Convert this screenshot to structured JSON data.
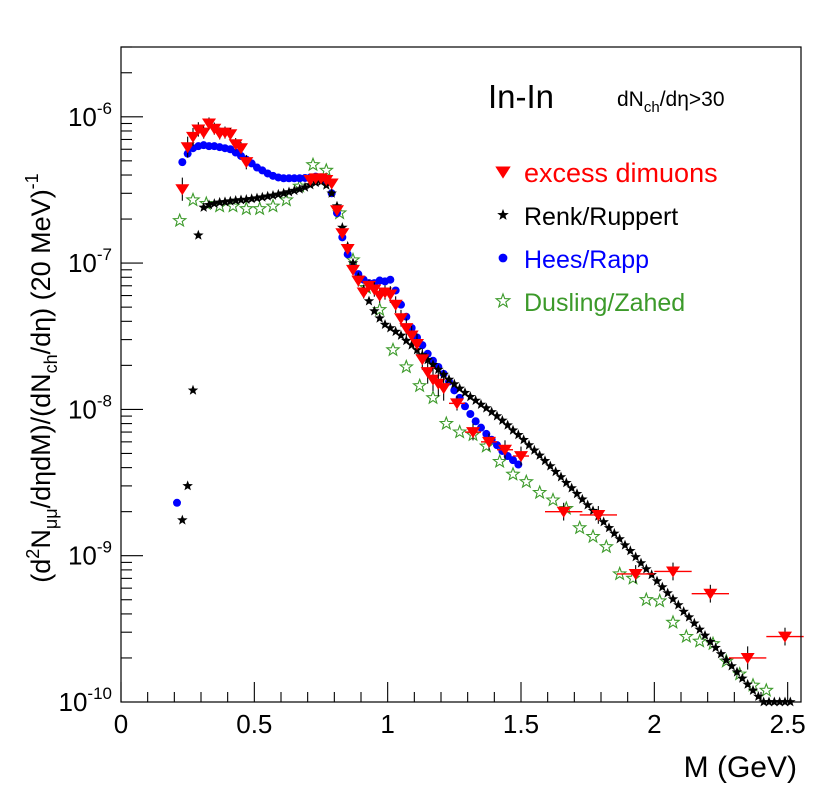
{
  "chart_data": {
    "type": "scatter",
    "xlabel": "M (GeV)",
    "ylabel": {
      "open": "(d",
      "sup2": "2",
      "n": "N",
      "mumu": "μμ",
      "mid": "/dηdM)/(dN",
      "ch": "ch",
      "close": "/dη)  (20 MeV)",
      "exp": "-1"
    },
    "annotation": {
      "system": "In-In",
      "cut_pre": "dN",
      "cut_sub": "ch",
      "cut_post": "/dη>30"
    },
    "xlim": [
      0,
      2.55
    ],
    "ylim": [
      1e-10,
      3e-06
    ],
    "yscale": "log",
    "x_ticks": [
      {
        "v": 0,
        "label": "0"
      },
      {
        "v": 0.5,
        "label": "0.5"
      },
      {
        "v": 1,
        "label": "1"
      },
      {
        "v": 1.5,
        "label": "1.5"
      },
      {
        "v": 2,
        "label": "2"
      },
      {
        "v": 2.5,
        "label": "2.5"
      }
    ],
    "y_ticks": [
      {
        "v": 1e-10,
        "base": "10",
        "exp": "-10"
      },
      {
        "v": 1e-09,
        "base": "10",
        "exp": "-9"
      },
      {
        "v": 1e-08,
        "base": "10",
        "exp": "-8"
      },
      {
        "v": 1e-07,
        "base": "10",
        "exp": "-7"
      },
      {
        "v": 1e-06,
        "base": "10",
        "exp": "-6"
      }
    ],
    "legend": {
      "placement": "top-right",
      "entries": [
        {
          "label": "excess dimuons",
          "color": "#ff0000",
          "marker": "triangle-down"
        },
        {
          "label": "Renk/Ruppert",
          "color": "#000000",
          "marker": "star-filled"
        },
        {
          "label": "Hees/Rapp",
          "color": "#0000ff",
          "marker": "circle"
        },
        {
          "label": "Dusling/Zahed",
          "color": "#3c9a2a",
          "marker": "star-open"
        }
      ]
    },
    "series": [
      {
        "name": "excess dimuons",
        "color": "#ff0000",
        "marker": "triangle-down",
        "x": [
          0.23,
          0.25,
          0.27,
          0.29,
          0.31,
          0.33,
          0.35,
          0.37,
          0.39,
          0.41,
          0.43,
          0.45,
          0.47,
          0.71,
          0.73,
          0.75,
          0.77,
          0.79,
          0.81,
          0.83,
          0.85,
          0.87,
          0.89,
          0.91,
          0.93,
          0.95,
          0.97,
          0.99,
          1.01,
          1.03,
          1.05,
          1.07,
          1.09,
          1.11,
          1.13,
          1.15,
          1.17,
          1.19,
          1.21,
          1.26,
          1.32,
          1.38,
          1.44,
          1.5,
          1.66,
          1.79,
          1.93,
          2.07,
          2.21,
          2.35,
          2.49
        ],
        "y": [
          3.2e-07,
          6.2e-07,
          7.3e-07,
          8.2e-07,
          7.8e-07,
          9e-07,
          8.3e-07,
          7.7e-07,
          7.8e-07,
          7.6e-07,
          6.5e-07,
          6.1e-07,
          4.9e-07,
          3.7e-07,
          3.8e-07,
          3.8e-07,
          3.7e-07,
          3.5e-07,
          2.3e-07,
          1.6e-07,
          1.25e-07,
          9e-08,
          7.6e-08,
          6.3e-08,
          7e-08,
          6.6e-08,
          6e-08,
          6.3e-08,
          6.1e-08,
          5.2e-08,
          4.2e-08,
          3.6e-08,
          3.2e-08,
          2.8e-08,
          2.2e-08,
          1.8e-08,
          1.6e-08,
          1.5e-08,
          1.4e-08,
          1.1e-08,
          7e-09,
          6e-09,
          5.3e-09,
          4.8e-09,
          2e-09,
          1.9e-09,
          7.5e-10,
          7.8e-10,
          5.5e-10,
          2e-10,
          2.8e-10
        ],
        "err": [
          0.2,
          0.18,
          0.15,
          0.12,
          0.1,
          0.1,
          0.1,
          0.1,
          0.1,
          0.1,
          0.1,
          0.1,
          0.12,
          0.08,
          0.08,
          0.08,
          0.08,
          0.08,
          0.08,
          0.08,
          0.08,
          0.08,
          0.1,
          0.1,
          0.1,
          0.12,
          0.12,
          0.12,
          0.14,
          0.14,
          0.14,
          0.16,
          0.16,
          0.18,
          0.18,
          0.2,
          0.2,
          0.22,
          0.22,
          0.12,
          0.14,
          0.14,
          0.16,
          0.16,
          0.15,
          0.15,
          0.15,
          0.15,
          0.15,
          0.2,
          0.15
        ],
        "xerr": [
          0,
          0,
          0,
          0,
          0,
          0,
          0,
          0,
          0,
          0,
          0,
          0,
          0,
          0,
          0,
          0,
          0,
          0,
          0,
          0,
          0,
          0,
          0,
          0,
          0,
          0,
          0,
          0,
          0,
          0,
          0,
          0,
          0,
          0,
          0,
          0,
          0,
          0,
          0,
          0.03,
          0.03,
          0.03,
          0.03,
          0.03,
          0.07,
          0.07,
          0.07,
          0.07,
          0.07,
          0.07,
          0.07
        ]
      },
      {
        "name": "Renk/Ruppert",
        "color": "#000000",
        "marker": "star-filled",
        "x": [
          0.23,
          0.25,
          0.27,
          0.29,
          0.31,
          0.33,
          0.35,
          0.37,
          0.39,
          0.41,
          0.43,
          0.45,
          0.47,
          0.49,
          0.51,
          0.53,
          0.55,
          0.57,
          0.59,
          0.61,
          0.63,
          0.65,
          0.67,
          0.69,
          0.71,
          0.73,
          0.75,
          0.77,
          0.79,
          0.81,
          0.83,
          0.85,
          0.87,
          0.89,
          0.91,
          0.93,
          0.95,
          0.97,
          0.99,
          1.01,
          1.03,
          1.05,
          1.07,
          1.09,
          1.11,
          1.13,
          1.15,
          1.17,
          1.19,
          1.21,
          1.23,
          1.25,
          1.27,
          1.29,
          1.31,
          1.33,
          1.35,
          1.37,
          1.39,
          1.41,
          1.43,
          1.45,
          1.47,
          1.49,
          1.51,
          1.53,
          1.55,
          1.57,
          1.59,
          1.61,
          1.63,
          1.65,
          1.67,
          1.69,
          1.71,
          1.73,
          1.75,
          1.77,
          1.79,
          1.81,
          1.83,
          1.85,
          1.87,
          1.89,
          1.91,
          1.93,
          1.95,
          1.97,
          1.99,
          2.01,
          2.03,
          2.05,
          2.07,
          2.09,
          2.11,
          2.13,
          2.15,
          2.17,
          2.19,
          2.21,
          2.23,
          2.25,
          2.27,
          2.29,
          2.31,
          2.33,
          2.35,
          2.37,
          2.39,
          2.41,
          2.43,
          2.45,
          2.47,
          2.49,
          2.51
        ],
        "y": [
          1.75e-09,
          3e-09,
          1.35e-08,
          1.55e-07,
          2.4e-07,
          2.5e-07,
          2.55e-07,
          2.6e-07,
          2.62e-07,
          2.65e-07,
          2.68e-07,
          2.7e-07,
          2.72e-07,
          2.75e-07,
          2.78e-07,
          2.82e-07,
          2.86e-07,
          2.9e-07,
          2.95e-07,
          3e-07,
          3.06e-07,
          3.13e-07,
          3.2e-07,
          3.3e-07,
          3.42e-07,
          3.55e-07,
          3.6e-07,
          3.4e-07,
          3e-07,
          2.45e-07,
          1.75e-07,
          1.3e-07,
          1e-07,
          8e-08,
          6.6e-08,
          5.5e-08,
          4.7e-08,
          4.2e-08,
          3.8e-08,
          3.6e-08,
          3.4e-08,
          3.2e-08,
          2.95e-08,
          2.75e-08,
          2.55e-08,
          2.35e-08,
          2.18e-08,
          2.02e-08,
          1.87e-08,
          1.73e-08,
          1.6e-08,
          1.49e-08,
          1.39e-08,
          1.3e-08,
          1.22e-08,
          1.15e-08,
          1.08e-08,
          1.02e-08,
          9.6e-09,
          9e-09,
          8.4e-09,
          7.8e-09,
          7.2e-09,
          6.7e-09,
          6.2e-09,
          5.7e-09,
          5.25e-09,
          4.85e-09,
          4.45e-09,
          4.1e-09,
          3.75e-09,
          3.45e-09,
          3.15e-09,
          2.9e-09,
          2.65e-09,
          2.43e-09,
          2.22e-09,
          2.03e-09,
          1.86e-09,
          1.7e-09,
          1.55e-09,
          1.42e-09,
          1.3e-09,
          1.18e-09,
          1.08e-09,
          9.8e-10,
          8.9e-10,
          8.1e-10,
          7.4e-10,
          6.7e-10,
          6.1e-10,
          5.55e-10,
          5.05e-10,
          4.6e-10,
          4.15e-10,
          3.8e-10,
          3.45e-10,
          3.13e-10,
          2.85e-10,
          2.58e-10,
          2.35e-10,
          2.13e-10,
          1.93e-10,
          1.76e-10,
          1.6e-10,
          1.45e-10,
          1.32e-10,
          1.2e-10,
          1.09e-10,
          1e-10,
          1e-10,
          1e-10,
          1e-10,
          1e-10,
          1e-10
        ],
        "extra": {
          "x": [
            0.29
          ],
          "y": [
            1.55e-07
          ]
        }
      },
      {
        "name": "Hees/Rapp",
        "color": "#0000ff",
        "marker": "circle",
        "x": [
          0.21,
          0.23,
          0.25,
          0.27,
          0.29,
          0.31,
          0.33,
          0.35,
          0.37,
          0.39,
          0.41,
          0.43,
          0.45,
          0.47,
          0.49,
          0.51,
          0.53,
          0.55,
          0.57,
          0.59,
          0.61,
          0.63,
          0.65,
          0.67,
          0.69,
          0.71,
          0.73,
          0.75,
          0.77,
          0.79,
          0.81,
          0.83,
          0.85,
          0.87,
          0.89,
          0.91,
          0.93,
          0.95,
          0.97,
          0.99,
          1.01,
          1.03,
          1.05,
          1.07,
          1.09,
          1.11,
          1.13,
          1.15,
          1.17,
          1.19,
          1.21,
          1.23,
          1.25,
          1.27,
          1.29,
          1.31,
          1.33,
          1.35,
          1.37,
          1.39,
          1.41,
          1.43,
          1.45,
          1.47,
          1.49
        ],
        "y": [
          2.3e-09,
          4.9e-07,
          5.6e-07,
          6.1e-07,
          6.3e-07,
          6.4e-07,
          6.3e-07,
          6.3e-07,
          6.2e-07,
          6.1e-07,
          6e-07,
          5.7e-07,
          5.4e-07,
          5.1e-07,
          4.8e-07,
          4.5e-07,
          4.3e-07,
          4.1e-07,
          3.95e-07,
          3.85e-07,
          3.8e-07,
          3.8e-07,
          3.8e-07,
          3.8e-07,
          3.82e-07,
          3.85e-07,
          3.9e-07,
          3.8e-07,
          3.55e-07,
          3e-07,
          2.2e-07,
          1.5e-07,
          1.15e-07,
          9.4e-08,
          8.4e-08,
          7.7e-08,
          7.3e-08,
          7.3e-08,
          7.6e-08,
          7.5e-08,
          7.7e-08,
          6.5e-08,
          5.2e-08,
          4.3e-08,
          3.6e-08,
          3.1e-08,
          2.75e-08,
          2.4e-08,
          2.15e-08,
          1.95e-08,
          1.75e-08,
          1.55e-08,
          1.35e-08,
          1.2e-08,
          1.05e-08,
          9.3e-09,
          8.3e-09,
          7.5e-09,
          6.8e-09,
          6.2e-09,
          5.7e-09,
          5.2e-09,
          4.8e-09,
          4.5e-09,
          4.2e-09
        ]
      },
      {
        "name": "Dusling/Zahed",
        "color": "#3c9a2a",
        "marker": "star-open",
        "x": [
          0.22,
          0.27,
          0.32,
          0.37,
          0.42,
          0.47,
          0.52,
          0.57,
          0.62,
          0.67,
          0.72,
          0.77,
          0.82,
          0.87,
          0.92,
          0.97,
          1.02,
          1.07,
          1.12,
          1.17,
          1.22,
          1.27,
          1.32,
          1.37,
          1.42,
          1.47,
          1.52,
          1.57,
          1.62,
          1.67,
          1.72,
          1.77,
          1.82,
          1.87,
          1.92,
          1.97,
          2.02,
          2.07,
          2.12,
          2.17,
          2.22,
          2.27,
          2.32,
          2.37,
          2.42
        ],
        "y": [
          1.95e-07,
          2.7e-07,
          2.55e-07,
          2.45e-07,
          2.45e-07,
          2.35e-07,
          2.35e-07,
          2.45e-07,
          2.7e-07,
          3.35e-07,
          4.7e-07,
          4.3e-07,
          2.2e-07,
          1.05e-07,
          6.8e-08,
          4.8e-08,
          2.55e-08,
          1.95e-08,
          1.45e-08,
          1.2e-08,
          8e-09,
          7e-09,
          6.7e-09,
          5.6e-09,
          4.4e-09,
          3.6e-09,
          3.2e-09,
          2.7e-09,
          2.4e-09,
          2.1e-09,
          1.55e-09,
          1.35e-09,
          1.15e-09,
          7.5e-10,
          7e-10,
          5e-10,
          4.9e-10,
          3.5e-10,
          2.8e-10,
          2.6e-10,
          2.5e-10,
          1.9e-10,
          1.55e-10,
          1.3e-10,
          1.2e-10
        ]
      }
    ]
  }
}
